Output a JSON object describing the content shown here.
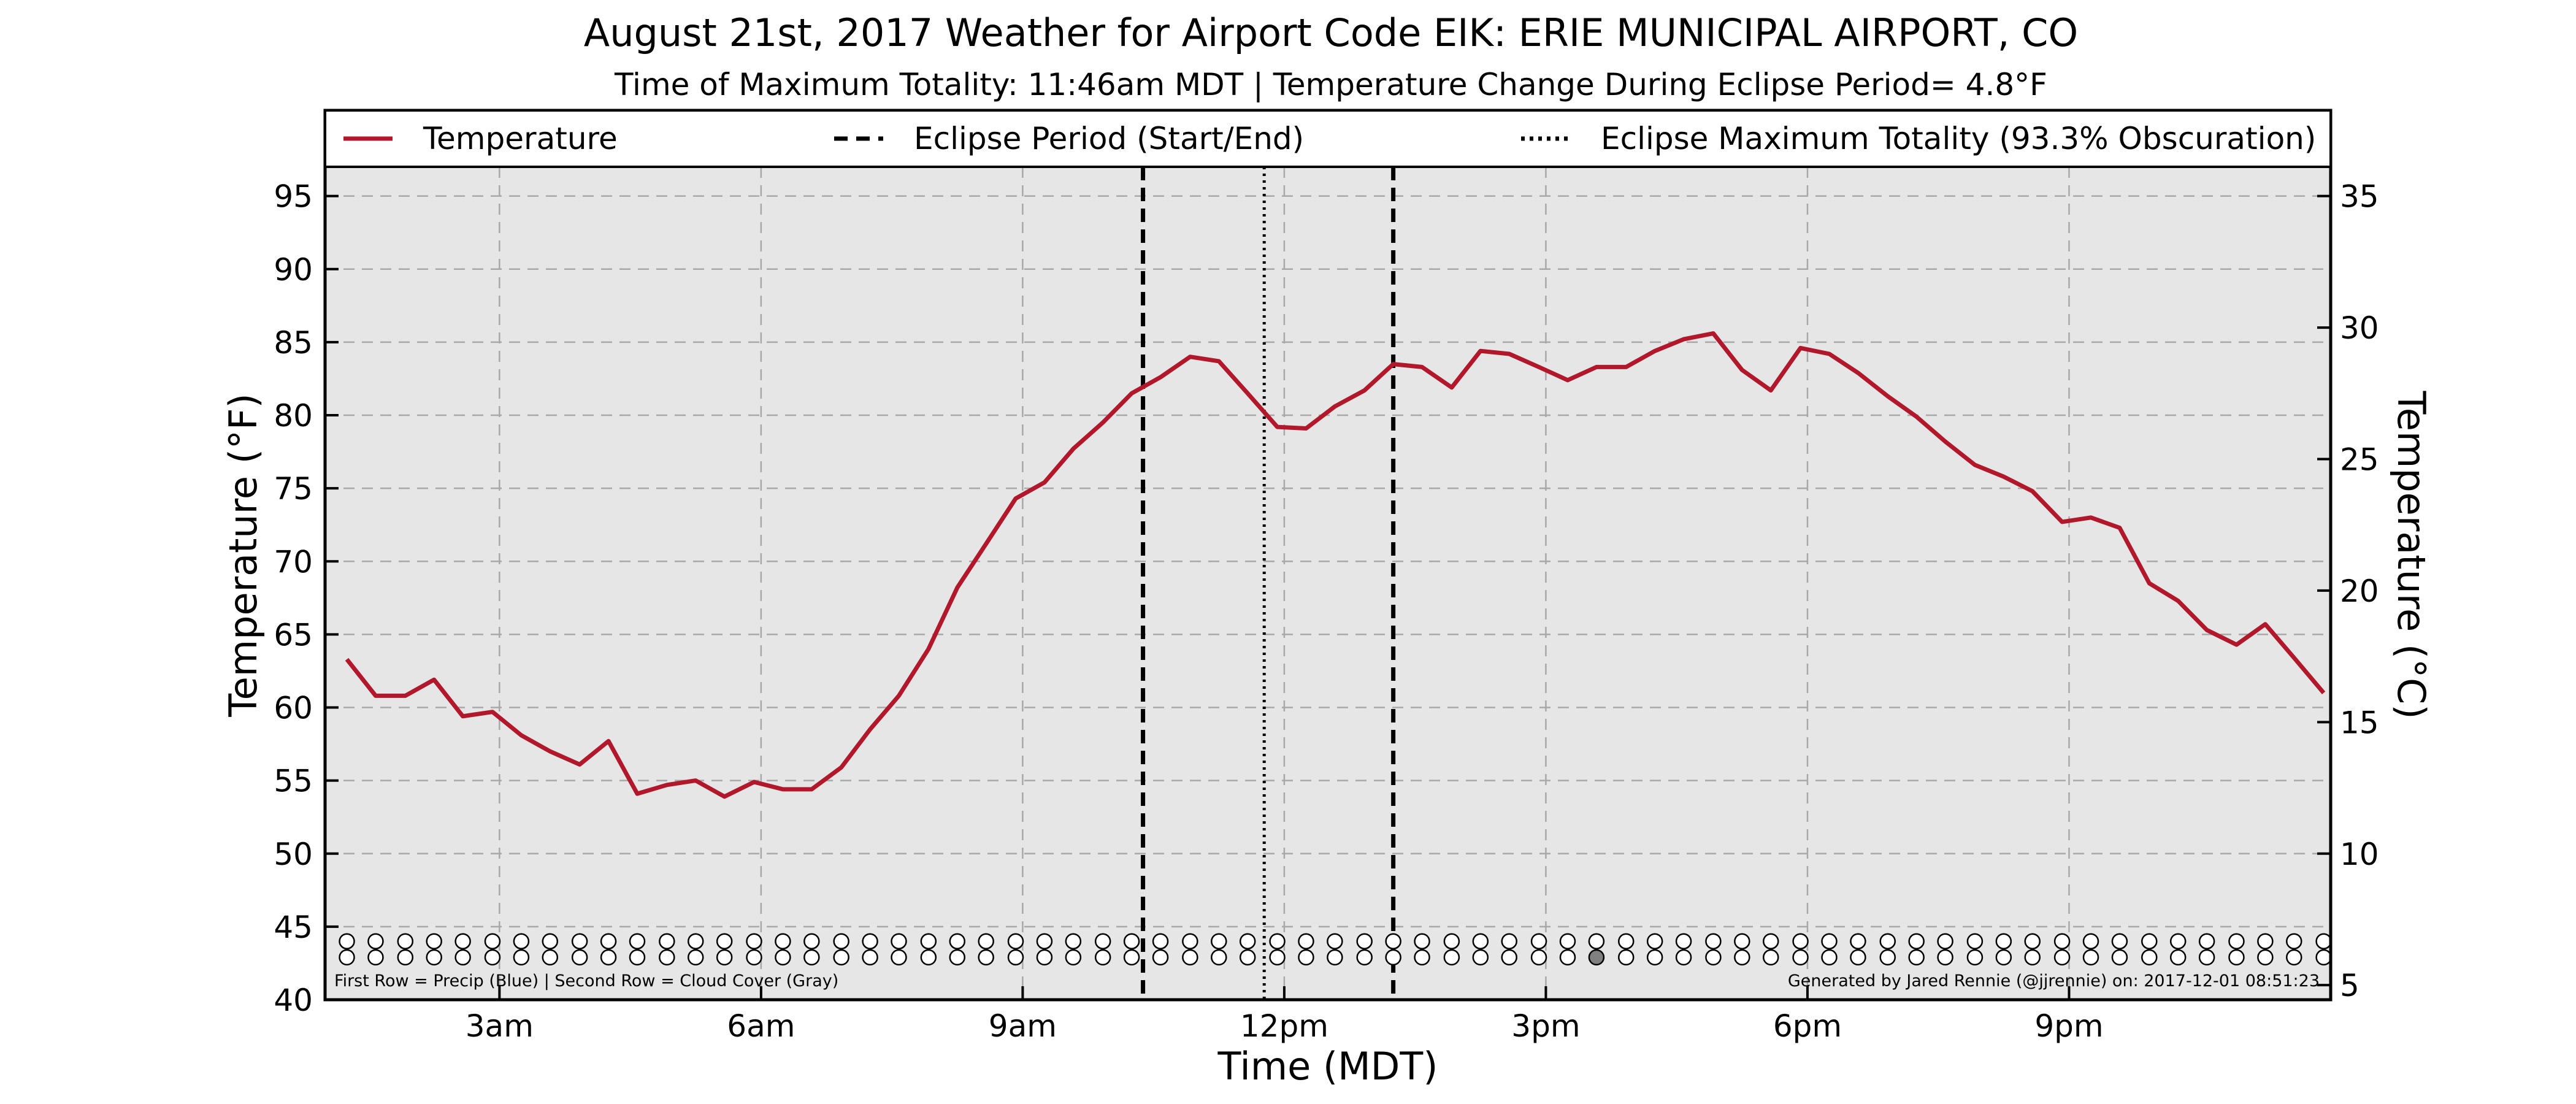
{
  "chart_data": {
    "type": "line",
    "title": "August 21st, 2017 Weather for Airport Code EIK: ERIE MUNICIPAL AIRPORT, CO",
    "subtitle": "Time of Maximum Totality: 11:46am MDT | Temperature Change During Eclipse Period= 4.8°F",
    "xlabel": "Time (MDT)",
    "ylabel": "Temperature (°F)",
    "ylabel_right": "Temperature (°C)",
    "xlim": [
      1.0,
      24.0
    ],
    "ylim": [
      40,
      97
    ],
    "ylim_right_celsius": [
      4.44,
      36.11
    ],
    "x_ticks": [
      {
        "x": 3,
        "label": "3am"
      },
      {
        "x": 6,
        "label": "6am"
      },
      {
        "x": 9,
        "label": "9am"
      },
      {
        "x": 12,
        "label": "12pm"
      },
      {
        "x": 15,
        "label": "3pm"
      },
      {
        "x": 18,
        "label": "6pm"
      },
      {
        "x": 21,
        "label": "9pm"
      }
    ],
    "y_ticks": [
      40,
      45,
      50,
      55,
      60,
      65,
      70,
      75,
      80,
      85,
      90,
      95
    ],
    "y_ticks_right": [
      5,
      10,
      15,
      20,
      25,
      30,
      35
    ],
    "grid": true,
    "legend_position": "top",
    "legend": [
      {
        "label": "Temperature",
        "style": "solid",
        "color": "#b2182b"
      },
      {
        "label": "Eclipse Period (Start/End)",
        "style": "dashed",
        "color": "#000000"
      },
      {
        "label": "Eclipse Maximum Totality (93.3% Obscuration)",
        "style": "dotted",
        "color": "#000000"
      }
    ],
    "eclipse_start": 10.38,
    "eclipse_end": 13.25,
    "eclipse_max": 11.77,
    "series": [
      {
        "name": "Temperature",
        "color": "#b2182b",
        "x": [
          1.25,
          1.58,
          1.92,
          2.25,
          2.58,
          2.92,
          3.25,
          3.58,
          3.92,
          4.25,
          4.58,
          4.92,
          5.25,
          5.58,
          5.92,
          6.25,
          6.58,
          6.92,
          7.25,
          7.58,
          7.92,
          8.25,
          8.58,
          8.92,
          9.25,
          9.58,
          9.92,
          10.25,
          10.58,
          10.92,
          11.25,
          11.58,
          11.92,
          12.25,
          12.58,
          12.92,
          13.25,
          13.58,
          13.92,
          14.25,
          14.58,
          14.92,
          15.25,
          15.58,
          15.92,
          16.25,
          16.58,
          16.92,
          17.25,
          17.58,
          17.92,
          18.25,
          18.58,
          18.92,
          19.25,
          19.58,
          19.92,
          20.25,
          20.58,
          20.92,
          21.25,
          21.58,
          21.92,
          22.25,
          22.58,
          22.92,
          23.25,
          23.58,
          23.92
        ],
        "y": [
          63.3,
          60.8,
          60.8,
          61.9,
          59.4,
          59.7,
          58.1,
          57.0,
          56.1,
          57.7,
          54.1,
          54.7,
          55.0,
          53.9,
          54.9,
          54.4,
          54.4,
          55.9,
          58.5,
          60.8,
          64.0,
          68.2,
          71.2,
          74.3,
          75.4,
          77.7,
          79.5,
          81.5,
          82.6,
          84.0,
          83.7,
          81.5,
          79.2,
          79.1,
          80.6,
          81.7,
          83.5,
          83.3,
          81.9,
          84.4,
          84.2,
          83.3,
          82.4,
          83.3,
          83.3,
          84.4,
          85.2,
          85.6,
          83.1,
          81.7,
          84.6,
          84.2,
          82.9,
          81.3,
          79.9,
          78.2,
          76.6,
          75.8,
          74.8,
          72.7,
          73.0,
          72.3,
          68.5,
          67.3,
          65.3,
          64.3,
          65.7,
          63.4,
          61.0
        ]
      }
    ],
    "indicator_rows": {
      "precip_y": 44.0,
      "cloud_y": 42.9,
      "x": [
        1.25,
        1.58,
        1.92,
        2.25,
        2.58,
        2.92,
        3.25,
        3.58,
        3.92,
        4.25,
        4.58,
        4.92,
        5.25,
        5.58,
        5.92,
        6.25,
        6.58,
        6.92,
        7.25,
        7.58,
        7.92,
        8.25,
        8.58,
        8.92,
        9.25,
        9.58,
        9.92,
        10.25,
        10.58,
        10.92,
        11.25,
        11.58,
        11.92,
        12.25,
        12.58,
        12.92,
        13.25,
        13.58,
        13.92,
        14.25,
        14.58,
        14.92,
        15.25,
        15.58,
        15.92,
        16.25,
        16.58,
        16.92,
        17.25,
        17.58,
        17.92,
        18.25,
        18.58,
        18.92,
        19.25,
        19.58,
        19.92,
        20.25,
        20.58,
        20.92,
        21.25,
        21.58,
        21.92,
        22.25,
        22.58,
        22.92,
        23.25,
        23.58,
        23.92
      ],
      "cloud_filled_x": [
        15.58
      ],
      "cloud_filled_color": "#808080"
    },
    "footnote_left": "First Row = Precip (Blue) | Second Row = Cloud Cover (Gray)",
    "footnote_right": "Generated by Jared Rennie (@jjrennie) on: 2017-12-01 08:51:23"
  }
}
